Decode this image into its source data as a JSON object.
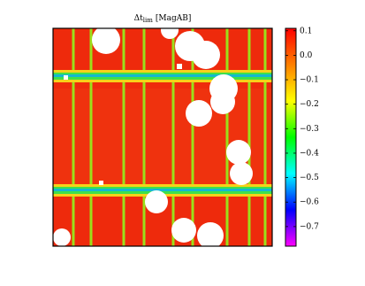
{
  "chart_data": {
    "type": "heatmap",
    "title": {
      "symbol": "Δt",
      "subscript": "lim",
      "unit": "[MagAB]"
    },
    "colormap": [
      "#ff00ff",
      "#0000ff",
      "#00ffff",
      "#00ff00",
      "#ffff00",
      "#ff8000",
      "#ff0000"
    ],
    "clim": [
      -0.78,
      0.11
    ],
    "cticks": [
      0.1,
      {
        "value": 0,
        "label": "0.0"
      },
      {
        "value": -0.1,
        "label": "−0.1"
      },
      {
        "value": -0.2,
        "label": "−0.2"
      },
      {
        "value": -0.3,
        "label": "−0.3"
      },
      {
        "value": -0.4,
        "label": "−0.4"
      },
      {
        "value": -0.5,
        "label": "−0.5"
      },
      {
        "value": -0.6,
        "label": "−0.6"
      },
      {
        "value": -0.7,
        "label": "−0.7"
      }
    ]
  }
}
